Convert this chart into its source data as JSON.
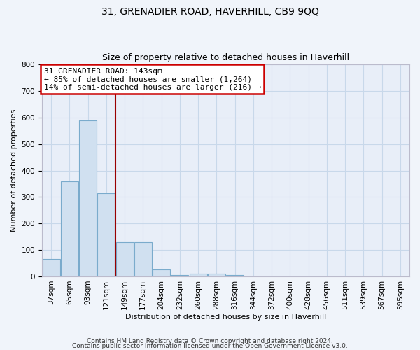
{
  "title": "31, GRENADIER ROAD, HAVERHILL, CB9 9QQ",
  "subtitle": "Size of property relative to detached houses in Haverhill",
  "xlabel": "Distribution of detached houses by size in Haverhill",
  "ylabel": "Number of detached properties",
  "categories": [
    "37sqm",
    "65sqm",
    "93sqm",
    "121sqm",
    "149sqm",
    "177sqm",
    "204sqm",
    "232sqm",
    "260sqm",
    "288sqm",
    "316sqm",
    "344sqm",
    "372sqm",
    "400sqm",
    "428sqm",
    "456sqm",
    "511sqm",
    "539sqm",
    "567sqm",
    "595sqm"
  ],
  "values": [
    65,
    360,
    590,
    315,
    130,
    130,
    25,
    5,
    10,
    10,
    5,
    0,
    0,
    0,
    0,
    0,
    0,
    0,
    0,
    0
  ],
  "bar_color": "#d0e0f0",
  "bar_edge_color": "#7aabcc",
  "grid_color": "#c8d8ea",
  "background_color": "#e8eef8",
  "fig_background": "#f0f4fa",
  "ylim": [
    0,
    800
  ],
  "yticks": [
    0,
    100,
    200,
    300,
    400,
    500,
    600,
    700,
    800
  ],
  "vline_color": "#990000",
  "vline_x": 3.5,
  "annotation_text": "31 GRENADIER ROAD: 143sqm\n← 85% of detached houses are smaller (1,264)\n14% of semi-detached houses are larger (216) →",
  "annotation_box_facecolor": "#ffffff",
  "annotation_box_edgecolor": "#cc0000",
  "footer1": "Contains HM Land Registry data © Crown copyright and database right 2024.",
  "footer2": "Contains public sector information licensed under the Open Government Licence v3.0.",
  "title_fontsize": 10,
  "subtitle_fontsize": 9,
  "label_fontsize": 8,
  "tick_fontsize": 7.5,
  "annotation_fontsize": 8,
  "footer_fontsize": 6.5
}
